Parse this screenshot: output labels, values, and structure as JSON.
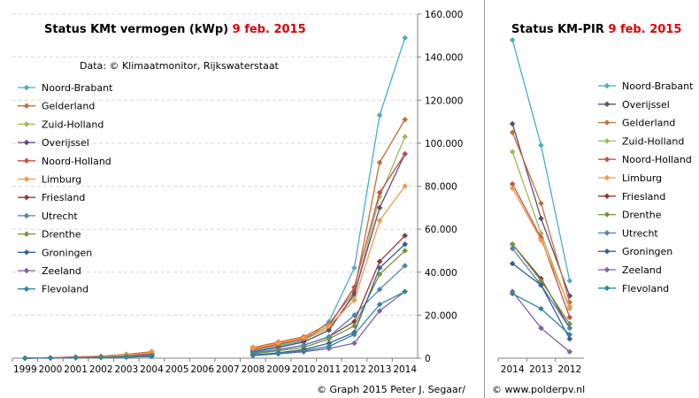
{
  "chart_data": [
    {
      "type": "line",
      "title": "Status KMt vermogen (kWp)",
      "title_date": "9 feb. 2015",
      "annotation": "Data: © Klimaatmonitor, Rijkswaterstaat",
      "x": [
        "1999",
        "2000",
        "2001",
        "2002",
        "2003",
        "2004",
        "2005",
        "2006",
        "2007",
        "2008",
        "2009",
        "2010",
        "2011",
        "2012",
        "2013",
        "2014"
      ],
      "ylim": [
        0,
        160000
      ],
      "yticks": [
        "0",
        "20.000",
        "40.000",
        "60.000",
        "80.000",
        "100.000",
        "120.000",
        "140.000",
        "160.000"
      ],
      "ytick_values": [
        0,
        20000,
        40000,
        60000,
        80000,
        100000,
        120000,
        140000,
        160000
      ],
      "y_axis_side": "right",
      "grid": true,
      "legend_position": "top-left",
      "series": [
        {
          "name": "Noord-Brabant",
          "color": "#4bacc6",
          "marker": "diamond",
          "values": [
            0,
            200,
            500,
            800,
            1200,
            2000,
            null,
            null,
            null,
            3500,
            5500,
            8000,
            17000,
            42000,
            113000,
            149000
          ]
        },
        {
          "name": "Gelderland",
          "color": "#c0703a",
          "marker": "diamond",
          "values": [
            0,
            200,
            600,
            1000,
            1800,
            3000,
            null,
            null,
            null,
            5000,
            7500,
            10000,
            16000,
            31000,
            91000,
            111000
          ]
        },
        {
          "name": "Zuid-Holland",
          "color": "#9bbb59",
          "marker": "diamond",
          "values": [
            0,
            200,
            400,
            700,
            1300,
            2300,
            null,
            null,
            null,
            4000,
            6000,
            8500,
            14000,
            29000,
            75000,
            103000
          ]
        },
        {
          "name": "Overijssel",
          "color": "#604a7b",
          "marker": "diamond",
          "values": [
            0,
            100,
            300,
            600,
            1000,
            1600,
            null,
            null,
            null,
            3000,
            5000,
            7500,
            13000,
            30000,
            70000,
            95000
          ]
        },
        {
          "name": "Noord-Holland",
          "color": "#c0504d",
          "marker": "diamond",
          "values": [
            0,
            200,
            500,
            800,
            1400,
            2200,
            null,
            null,
            null,
            4000,
            6500,
            9000,
            15000,
            33000,
            77000,
            95000
          ]
        },
        {
          "name": "Limburg",
          "color": "#f79646",
          "marker": "diamond",
          "values": [
            0,
            200,
            500,
            900,
            1500,
            2600,
            null,
            null,
            null,
            4500,
            7000,
            9500,
            15000,
            27000,
            64000,
            80000
          ]
        },
        {
          "name": "Friesland",
          "color": "#953735",
          "marker": "diamond",
          "values": [
            0,
            100,
            300,
            500,
            800,
            1300,
            null,
            null,
            null,
            2500,
            4000,
            6000,
            10000,
            17000,
            45000,
            57000
          ]
        },
        {
          "name": "Utrecht",
          "color": "#4f81bd",
          "marker": "diamond",
          "values": [
            0,
            100,
            300,
            500,
            900,
            1400,
            null,
            null,
            null,
            2500,
            4000,
            6000,
            10000,
            20000,
            32000,
            43000
          ]
        },
        {
          "name": "Drenthe",
          "color": "#77933c",
          "marker": "diamond",
          "values": [
            0,
            100,
            200,
            400,
            700,
            1100,
            null,
            null,
            null,
            2000,
            3500,
            5000,
            9000,
            15000,
            39000,
            50000
          ]
        },
        {
          "name": "Groningen",
          "color": "#376092",
          "marker": "diamond",
          "values": [
            0,
            100,
            200,
            300,
            500,
            900,
            null,
            null,
            null,
            1500,
            2500,
            4000,
            7000,
            12000,
            42000,
            53000
          ]
        },
        {
          "name": "Zeeland",
          "color": "#8064a2",
          "marker": "diamond",
          "values": [
            0,
            100,
            200,
            300,
            500,
            800,
            null,
            null,
            null,
            1200,
            2000,
            3000,
            4500,
            7000,
            22000,
            31000
          ]
        },
        {
          "name": "Flevoland",
          "color": "#31859c",
          "marker": "diamond",
          "values": [
            0,
            100,
            200,
            300,
            500,
            800,
            null,
            null,
            null,
            1300,
            2200,
            3500,
            5500,
            11000,
            25000,
            31000
          ]
        }
      ]
    },
    {
      "type": "line",
      "title": "Status KM-PIR",
      "title_date": "9 feb. 2015",
      "x": [
        "2014",
        "2013",
        "2012"
      ],
      "ylim": [
        0,
        160000
      ],
      "grid": false,
      "legend_position": "right",
      "series": [
        {
          "name": "Noord-Brabant",
          "color": "#4bacc6",
          "values": [
            148000,
            99000,
            36000
          ]
        },
        {
          "name": "Overijssel",
          "color": "#604a7b",
          "values": [
            109000,
            65000,
            29000
          ]
        },
        {
          "name": "Gelderland",
          "color": "#c0703a",
          "values": [
            105000,
            72000,
            26000
          ]
        },
        {
          "name": "Zuid-Holland",
          "color": "#9bbb59",
          "values": [
            96000,
            58000,
            23000
          ]
        },
        {
          "name": "Noord-Holland",
          "color": "#c0504d",
          "values": [
            81000,
            56000,
            19000
          ]
        },
        {
          "name": "Limburg",
          "color": "#f79646",
          "values": [
            79000,
            55000,
            24000
          ]
        },
        {
          "name": "Friesland",
          "color": "#953735",
          "values": [
            53000,
            37000,
            14000
          ]
        },
        {
          "name": "Drenthe",
          "color": "#77933c",
          "values": [
            53000,
            36000,
            16000
          ]
        },
        {
          "name": "Utrecht",
          "color": "#4f81bd",
          "values": [
            51000,
            34000,
            14000
          ]
        },
        {
          "name": "Groningen",
          "color": "#376092",
          "values": [
            44000,
            34000,
            9000
          ]
        },
        {
          "name": "Zeeland",
          "color": "#8064a2",
          "values": [
            31000,
            14000,
            3000
          ]
        },
        {
          "name": "Flevoland",
          "color": "#31859c",
          "values": [
            30000,
            23000,
            11000
          ]
        }
      ]
    }
  ],
  "footer": {
    "credit_left": "© Graph 2015 Peter J. Segaar/",
    "credit_right": "© www.polderpv.nl"
  }
}
